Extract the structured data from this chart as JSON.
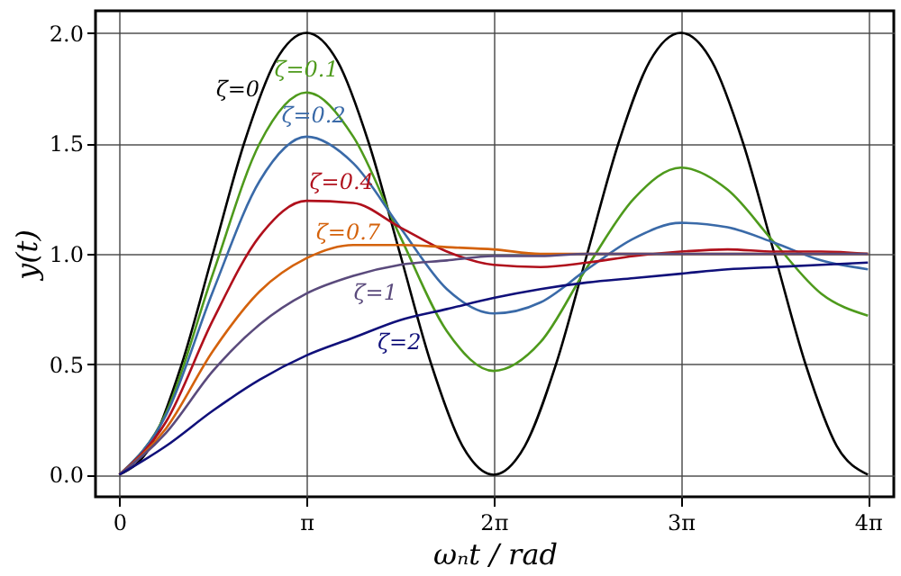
{
  "chart_data": {
    "type": "line",
    "xlabel": "ωₙt / rad",
    "ylabel": "y(t)",
    "xlim": [
      -0.4,
      13.0
    ],
    "xticks": [
      0,
      {
        "value": 3.1416,
        "label": "π"
      },
      {
        "value": 6.2832,
        "label": "2π"
      },
      {
        "value": 9.4248,
        "label": "3π"
      },
      {
        "value": 12.5664,
        "label": "4π"
      }
    ],
    "ylim": [
      -0.1,
      2.1
    ],
    "yticks": [
      {
        "value": 0,
        "label": "0.0"
      },
      {
        "value": 0.5,
        "label": "0.5"
      },
      {
        "value": 1,
        "label": "1.0"
      },
      {
        "value": 1.5,
        "label": "1.5"
      },
      {
        "value": 2,
        "label": "2.0"
      }
    ],
    "grid": true,
    "line_style": "solid",
    "marker": "none",
    "series": [
      {
        "name": "ζ=0",
        "color": "#000000",
        "x": [
          0,
          0.524,
          1.047,
          1.571,
          2.094,
          2.618,
          3.142,
          3.665,
          4.189,
          4.712,
          5.236,
          5.76,
          6.283,
          6.807,
          7.33,
          7.854,
          8.378,
          8.901,
          9.425,
          9.948,
          10.472,
          10.996,
          11.519,
          12.043,
          12.566
        ],
        "values": [
          0,
          0.13,
          0.5,
          1,
          1.5,
          1.87,
          2,
          1.87,
          1.5,
          1,
          0.5,
          0.13,
          0,
          0.13,
          0.5,
          1,
          1.5,
          1.87,
          2,
          1.87,
          1.5,
          1,
          0.5,
          0.13,
          0
        ]
      },
      {
        "name": "ζ=0.1",
        "color": "#4e9a1c",
        "x": [
          0,
          0.785,
          1.571,
          2.356,
          3.142,
          3.927,
          4.712,
          5.498,
          6.283,
          7.069,
          7.854,
          8.639,
          9.425,
          10.21,
          10.996,
          11.781,
          12.566
        ],
        "values": [
          0,
          0.28,
          0.91,
          1.5,
          1.73,
          1.53,
          1.08,
          0.65,
          0.47,
          0.6,
          0.94,
          1.25,
          1.39,
          1.29,
          1.05,
          0.82,
          0.72
        ]
      },
      {
        "name": "ζ=0.2",
        "color": "#3a6aa8",
        "x": [
          0,
          0.785,
          1.571,
          2.356,
          3.142,
          3.927,
          4.712,
          5.498,
          6.283,
          7.069,
          7.854,
          8.639,
          9.425,
          10.21,
          10.996,
          11.781,
          12.566
        ],
        "values": [
          0,
          0.27,
          0.83,
          1.33,
          1.53,
          1.41,
          1.12,
          0.84,
          0.73,
          0.78,
          0.93,
          1.07,
          1.14,
          1.12,
          1.05,
          0.97,
          0.93
        ]
      },
      {
        "name": "ζ=0.4",
        "color": "#b0101c",
        "x": [
          0,
          0.785,
          1.571,
          2.356,
          3.142,
          3.927,
          4.712,
          5.498,
          6.283,
          7.069,
          7.854,
          8.639,
          9.425,
          10.21,
          10.996,
          11.781,
          12.566
        ],
        "values": [
          0,
          0.24,
          0.7,
          1.08,
          1.24,
          1.23,
          1.12,
          1.01,
          0.95,
          0.94,
          0.96,
          0.99,
          1.01,
          1.02,
          1.01,
          1.01,
          1
        ]
      },
      {
        "name": "ζ=0.7",
        "color": "#d4620c",
        "x": [
          0,
          0.785,
          1.571,
          2.356,
          3.142,
          3.927,
          4.712,
          5.498,
          6.283,
          7.069,
          7.854,
          8.639,
          9.425,
          10.21,
          10.996,
          11.781,
          12.566
        ],
        "values": [
          0,
          0.21,
          0.56,
          0.83,
          0.98,
          1.04,
          1.04,
          1.03,
          1.02,
          1,
          1,
          1,
          1,
          1,
          1,
          1,
          1
        ]
      },
      {
        "name": "ζ=1",
        "color": "#5a4a7c",
        "x": [
          0,
          0.785,
          1.571,
          2.356,
          3.142,
          3.927,
          4.712,
          5.498,
          6.283,
          7.069,
          7.854,
          8.639,
          9.425,
          10.21,
          10.996,
          11.781,
          12.566
        ],
        "values": [
          0,
          0.19,
          0.47,
          0.68,
          0.82,
          0.9,
          0.95,
          0.97,
          0.99,
          0.99,
          1,
          1,
          1,
          1,
          1,
          1,
          1
        ]
      },
      {
        "name": "ζ=2",
        "color": "#10107a",
        "x": [
          0,
          0.785,
          1.571,
          2.356,
          3.142,
          3.927,
          4.712,
          5.498,
          6.283,
          7.069,
          7.854,
          8.639,
          9.425,
          10.21,
          10.996,
          11.781,
          12.566
        ],
        "values": [
          0,
          0.13,
          0.29,
          0.43,
          0.54,
          0.62,
          0.7,
          0.75,
          0.8,
          0.84,
          0.87,
          0.89,
          0.91,
          0.93,
          0.94,
          0.95,
          0.96
        ]
      }
    ]
  }
}
